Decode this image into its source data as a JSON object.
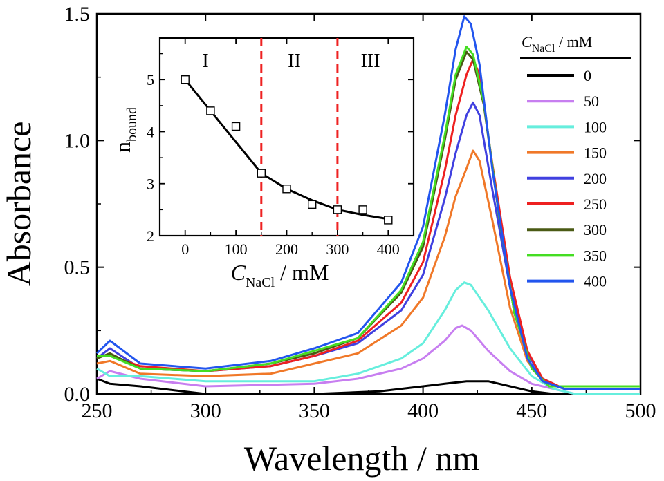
{
  "chart_data": [
    {
      "type": "line",
      "id": "main",
      "xlabel": "Wavelength / nm",
      "ylabel": "Absorbance",
      "xlim": [
        250,
        500
      ],
      "ylim": [
        0,
        1.5
      ],
      "xticks": [
        250,
        300,
        350,
        400,
        450,
        500
      ],
      "yticks": [
        0.0,
        0.5,
        1.0,
        1.5
      ],
      "xtick_labels": [
        "250",
        "300",
        "350",
        "400",
        "450",
        "500"
      ],
      "ytick_labels": [
        "0.0",
        "0.5",
        "1.0",
        "1.5"
      ],
      "grid": false,
      "legend": {
        "title_var": "C",
        "title_sub": "NaCl",
        "title_unit": " / mM",
        "placement": "top-right"
      },
      "series": [
        {
          "name": "0",
          "color": "#000000",
          "values": [
            [
              250,
              0.06
            ],
            [
              256,
              0.04
            ],
            [
              270,
              0.03
            ],
            [
              300,
              0.0
            ],
            [
              350,
              0.0
            ],
            [
              380,
              0.01
            ],
            [
              400,
              0.03
            ],
            [
              410,
              0.04
            ],
            [
              420,
              0.05
            ],
            [
              430,
              0.05
            ],
            [
              440,
              0.03
            ],
            [
              450,
              0.01
            ],
            [
              460,
              0.0
            ],
            [
              500,
              0.0
            ]
          ]
        },
        {
          "name": "50",
          "color": "#c77ef0",
          "values": [
            [
              250,
              0.06
            ],
            [
              256,
              0.09
            ],
            [
              270,
              0.06
            ],
            [
              300,
              0.03
            ],
            [
              350,
              0.04
            ],
            [
              370,
              0.06
            ],
            [
              390,
              0.1
            ],
            [
              400,
              0.14
            ],
            [
              410,
              0.21
            ],
            [
              415,
              0.26
            ],
            [
              418,
              0.27
            ],
            [
              422,
              0.25
            ],
            [
              430,
              0.17
            ],
            [
              440,
              0.09
            ],
            [
              450,
              0.04
            ],
            [
              460,
              0.02
            ],
            [
              470,
              0.0
            ],
            [
              500,
              0.0
            ]
          ]
        },
        {
          "name": "100",
          "color": "#66eedd",
          "values": [
            [
              250,
              0.1
            ],
            [
              256,
              0.07
            ],
            [
              270,
              0.07
            ],
            [
              300,
              0.05
            ],
            [
              350,
              0.05
            ],
            [
              370,
              0.08
            ],
            [
              390,
              0.14
            ],
            [
              400,
              0.2
            ],
            [
              410,
              0.33
            ],
            [
              415,
              0.41
            ],
            [
              419,
              0.44
            ],
            [
              422,
              0.43
            ],
            [
              430,
              0.33
            ],
            [
              440,
              0.18
            ],
            [
              450,
              0.07
            ],
            [
              460,
              0.02
            ],
            [
              470,
              0.0
            ],
            [
              500,
              0.0
            ]
          ]
        },
        {
          "name": "150",
          "color": "#f07828",
          "values": [
            [
              250,
              0.12
            ],
            [
              256,
              0.13
            ],
            [
              270,
              0.08
            ],
            [
              300,
              0.07
            ],
            [
              330,
              0.08
            ],
            [
              350,
              0.12
            ],
            [
              370,
              0.16
            ],
            [
              390,
              0.27
            ],
            [
              400,
              0.38
            ],
            [
              410,
              0.62
            ],
            [
              415,
              0.78
            ],
            [
              420,
              0.89
            ],
            [
              423,
              0.96
            ],
            [
              426,
              0.92
            ],
            [
              432,
              0.68
            ],
            [
              440,
              0.34
            ],
            [
              448,
              0.13
            ],
            [
              455,
              0.05
            ],
            [
              465,
              0.02
            ],
            [
              500,
              0.02
            ]
          ]
        },
        {
          "name": "200",
          "color": "#4040e0",
          "values": [
            [
              250,
              0.14
            ],
            [
              256,
              0.18
            ],
            [
              270,
              0.1
            ],
            [
              300,
              0.09
            ],
            [
              330,
              0.11
            ],
            [
              350,
              0.15
            ],
            [
              370,
              0.2
            ],
            [
              390,
              0.33
            ],
            [
              400,
              0.47
            ],
            [
              410,
              0.77
            ],
            [
              415,
              0.95
            ],
            [
              420,
              1.1
            ],
            [
              423,
              1.15
            ],
            [
              426,
              1.1
            ],
            [
              432,
              0.8
            ],
            [
              440,
              0.42
            ],
            [
              448,
              0.16
            ],
            [
              455,
              0.06
            ],
            [
              465,
              0.02
            ],
            [
              500,
              0.02
            ]
          ]
        },
        {
          "name": "250",
          "color": "#ee2020",
          "values": [
            [
              250,
              0.15
            ],
            [
              256,
              0.15
            ],
            [
              270,
              0.11
            ],
            [
              300,
              0.09
            ],
            [
              330,
              0.11
            ],
            [
              350,
              0.15
            ],
            [
              370,
              0.21
            ],
            [
              390,
              0.36
            ],
            [
              400,
              0.52
            ],
            [
              410,
              0.88
            ],
            [
              415,
              1.1
            ],
            [
              420,
              1.26
            ],
            [
              423,
              1.32
            ],
            [
              426,
              1.26
            ],
            [
              432,
              0.9
            ],
            [
              440,
              0.46
            ],
            [
              448,
              0.17
            ],
            [
              455,
              0.06
            ],
            [
              465,
              0.02
            ],
            [
              500,
              0.02
            ]
          ]
        },
        {
          "name": "300",
          "color": "#4a5a14",
          "values": [
            [
              250,
              0.14
            ],
            [
              256,
              0.16
            ],
            [
              270,
              0.1
            ],
            [
              300,
              0.09
            ],
            [
              330,
              0.12
            ],
            [
              350,
              0.16
            ],
            [
              370,
              0.22
            ],
            [
              390,
              0.4
            ],
            [
              400,
              0.58
            ],
            [
              410,
              1.0
            ],
            [
              415,
              1.24
            ],
            [
              420,
              1.35
            ],
            [
              423,
              1.32
            ],
            [
              428,
              1.14
            ],
            [
              435,
              0.7
            ],
            [
              442,
              0.32
            ],
            [
              450,
              0.1
            ],
            [
              458,
              0.03
            ],
            [
              500,
              0.03
            ]
          ]
        },
        {
          "name": "350",
          "color": "#44dd22",
          "values": [
            [
              250,
              0.15
            ],
            [
              256,
              0.15
            ],
            [
              270,
              0.1
            ],
            [
              300,
              0.09
            ],
            [
              330,
              0.12
            ],
            [
              350,
              0.17
            ],
            [
              370,
              0.22
            ],
            [
              390,
              0.41
            ],
            [
              400,
              0.6
            ],
            [
              410,
              1.02
            ],
            [
              415,
              1.26
            ],
            [
              420,
              1.37
            ],
            [
              423,
              1.34
            ],
            [
              428,
              1.15
            ],
            [
              435,
              0.7
            ],
            [
              442,
              0.32
            ],
            [
              450,
              0.1
            ],
            [
              458,
              0.03
            ],
            [
              500,
              0.03
            ]
          ]
        },
        {
          "name": "400",
          "color": "#2255ee",
          "values": [
            [
              250,
              0.16
            ],
            [
              256,
              0.21
            ],
            [
              270,
              0.12
            ],
            [
              300,
              0.1
            ],
            [
              330,
              0.13
            ],
            [
              350,
              0.18
            ],
            [
              370,
              0.24
            ],
            [
              390,
              0.44
            ],
            [
              400,
              0.66
            ],
            [
              410,
              1.1
            ],
            [
              415,
              1.36
            ],
            [
              419,
              1.49
            ],
            [
              422,
              1.46
            ],
            [
              426,
              1.3
            ],
            [
              432,
              0.88
            ],
            [
              440,
              0.42
            ],
            [
              448,
              0.14
            ],
            [
              455,
              0.05
            ],
            [
              465,
              0.02
            ],
            [
              500,
              0.02
            ]
          ]
        }
      ]
    },
    {
      "type": "scatter",
      "id": "inset",
      "xlabel_var": "C",
      "xlabel_sub": "NaCl",
      "xlabel_unit": " / mM",
      "ylabel_var": "n",
      "ylabel_sub": "bound",
      "xlim": [
        -50,
        450
      ],
      "ylim": [
        2,
        5.8
      ],
      "xticks": [
        0,
        100,
        200,
        300,
        400
      ],
      "yticks": [
        2,
        3,
        4,
        5
      ],
      "xtick_labels": [
        "0",
        "100",
        "200",
        "300",
        "400"
      ],
      "ytick_labels": [
        "2",
        "3",
        "4",
        "5"
      ],
      "points": [
        [
          0,
          5.0
        ],
        [
          50,
          4.4
        ],
        [
          100,
          4.1
        ],
        [
          150,
          3.2
        ],
        [
          200,
          2.9
        ],
        [
          250,
          2.6
        ],
        [
          300,
          2.5
        ],
        [
          350,
          2.5
        ],
        [
          400,
          2.3
        ]
      ],
      "fit_line": [
        [
          0,
          5.0
        ],
        [
          50,
          4.4
        ],
        [
          100,
          3.8
        ],
        [
          150,
          3.2
        ],
        [
          200,
          2.9
        ],
        [
          250,
          2.68
        ],
        [
          300,
          2.5
        ],
        [
          350,
          2.4
        ],
        [
          400,
          2.32
        ]
      ],
      "dividers": [
        150,
        300
      ],
      "divider_color": "#ee2222",
      "regions": [
        {
          "label": "I",
          "x": 40
        },
        {
          "label": "II",
          "x": 215
        },
        {
          "label": "III",
          "x": 365
        }
      ]
    }
  ]
}
